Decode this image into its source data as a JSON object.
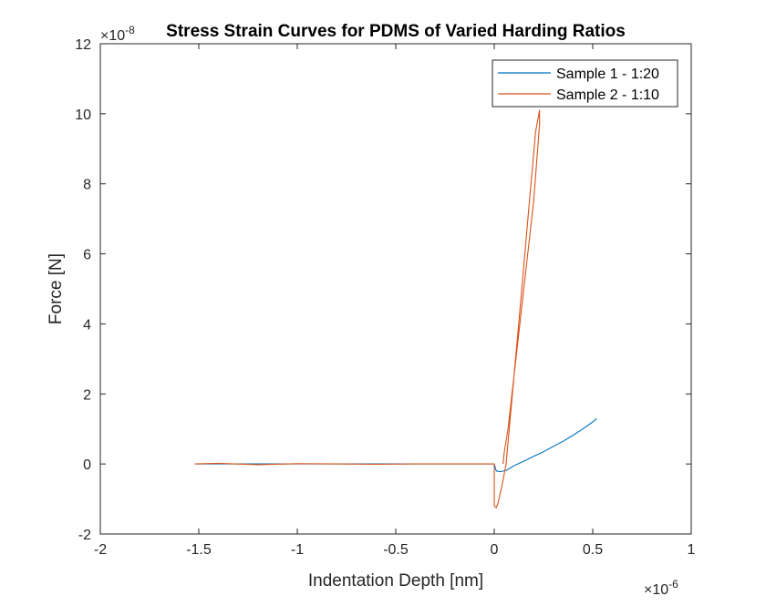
{
  "chart_data": {
    "type": "line",
    "title": "Stress Strain Curves for PDMS of Varied Harding Ratios",
    "xlabel": "Indentation Depth [nm]",
    "ylabel": "Force [N]",
    "x_exponent_label": "×10",
    "x_exponent_power": "-6",
    "y_exponent_label": "×10",
    "y_exponent_power": "-8",
    "xlim": [
      -2,
      1
    ],
    "ylim": [
      -2,
      12
    ],
    "xticks": [
      -2,
      -1.5,
      -1,
      -0.5,
      0,
      0.5,
      1
    ],
    "xtick_labels": [
      "-2",
      "-1.5",
      "-1",
      "-0.5",
      "0",
      "0.5",
      "1"
    ],
    "yticks": [
      -2,
      0,
      2,
      4,
      6,
      8,
      10,
      12
    ],
    "ytick_labels": [
      "-2",
      "0",
      "2",
      "4",
      "6",
      "8",
      "10",
      "12"
    ],
    "grid": false,
    "legend_position": "top-right",
    "series": [
      {
        "name": "Sample 1 - 1:20",
        "color": "#0072BD",
        "x": [
          -1.52,
          -1.2,
          -0.9,
          -0.6,
          -0.3,
          0.0,
          0.01,
          0.03,
          0.06,
          0.1,
          0.15,
          0.2,
          0.25,
          0.3,
          0.35,
          0.4,
          0.45,
          0.5,
          0.52
        ],
        "y": [
          0.0,
          0.0,
          0.0,
          0.0,
          0.0,
          0.0,
          -0.2,
          -0.22,
          -0.18,
          -0.05,
          0.08,
          0.22,
          0.35,
          0.5,
          0.65,
          0.82,
          1.0,
          1.2,
          1.3
        ]
      },
      {
        "name": "Sample 2 - 1:10",
        "color": "#D95319",
        "x": [
          -1.52,
          -1.4,
          -1.2,
          -1.0,
          -0.8,
          -0.6,
          -0.4,
          -0.2,
          0.0,
          0.0,
          0.01,
          0.02,
          0.04,
          0.06,
          0.1,
          0.14,
          0.18,
          0.21,
          0.23,
          0.23,
          0.2,
          0.15,
          0.1,
          0.07,
          0.05,
          0.045
        ],
        "y": [
          0.0,
          0.02,
          -0.02,
          0.01,
          0.0,
          -0.01,
          0.0,
          0.0,
          0.0,
          -1.2,
          -1.25,
          -1.1,
          -0.6,
          0.0,
          2.5,
          5.0,
          7.6,
          9.5,
          10.1,
          9.7,
          7.5,
          5.0,
          2.5,
          1.0,
          0.3,
          0.0
        ]
      }
    ]
  }
}
